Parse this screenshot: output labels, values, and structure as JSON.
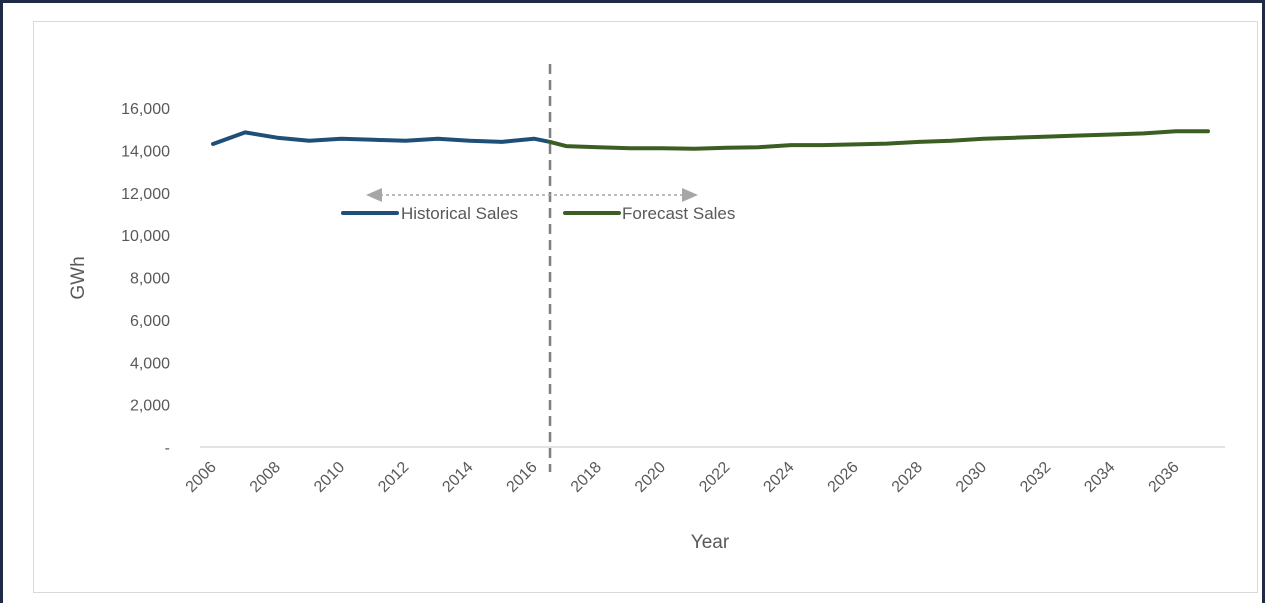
{
  "chart_data": {
    "type": "line",
    "xlabel": "Year",
    "ylabel": "GWh",
    "ylim": [
      0,
      16000
    ],
    "y_ticks": [
      0,
      2000,
      4000,
      6000,
      8000,
      10000,
      12000,
      14000,
      16000
    ],
    "y_tick_labels": [
      "-",
      "2,000",
      "4,000",
      "6,000",
      "8,000",
      "10,000",
      "12,000",
      "14,000",
      "16,000"
    ],
    "x_ticks": [
      "2006",
      "2008",
      "2010",
      "2012",
      "2014",
      "2016",
      "2018",
      "2020",
      "2022",
      "2024",
      "2026",
      "2028",
      "2030",
      "2032",
      "2034",
      "2036"
    ],
    "xlim": [
      2006,
      2037
    ],
    "grid": false,
    "legend_position": "upper-left, inside plot",
    "divider_year": 2016.5,
    "series": [
      {
        "name": "Historical Sales",
        "color": "#1f4e79",
        "x": [
          2006,
          2007,
          2008,
          2009,
          2010,
          2011,
          2012,
          2013,
          2014,
          2015,
          2016,
          2016.5
        ],
        "values": [
          14300,
          14850,
          14600,
          14450,
          14550,
          14500,
          14450,
          14550,
          14450,
          14400,
          14550,
          14400
        ]
      },
      {
        "name": "Forecast Sales",
        "color": "#3b5e22",
        "x": [
          2016.5,
          2017,
          2018,
          2019,
          2020,
          2021,
          2022,
          2023,
          2024,
          2025,
          2026,
          2027,
          2028,
          2029,
          2030,
          2031,
          2032,
          2033,
          2034,
          2035,
          2036,
          2037
        ],
        "values": [
          14400,
          14200,
          14150,
          14100,
          14100,
          14080,
          14120,
          14150,
          14250,
          14250,
          14280,
          14320,
          14400,
          14450,
          14550,
          14600,
          14650,
          14700,
          14750,
          14800,
          14900,
          14900
        ]
      }
    ]
  }
}
